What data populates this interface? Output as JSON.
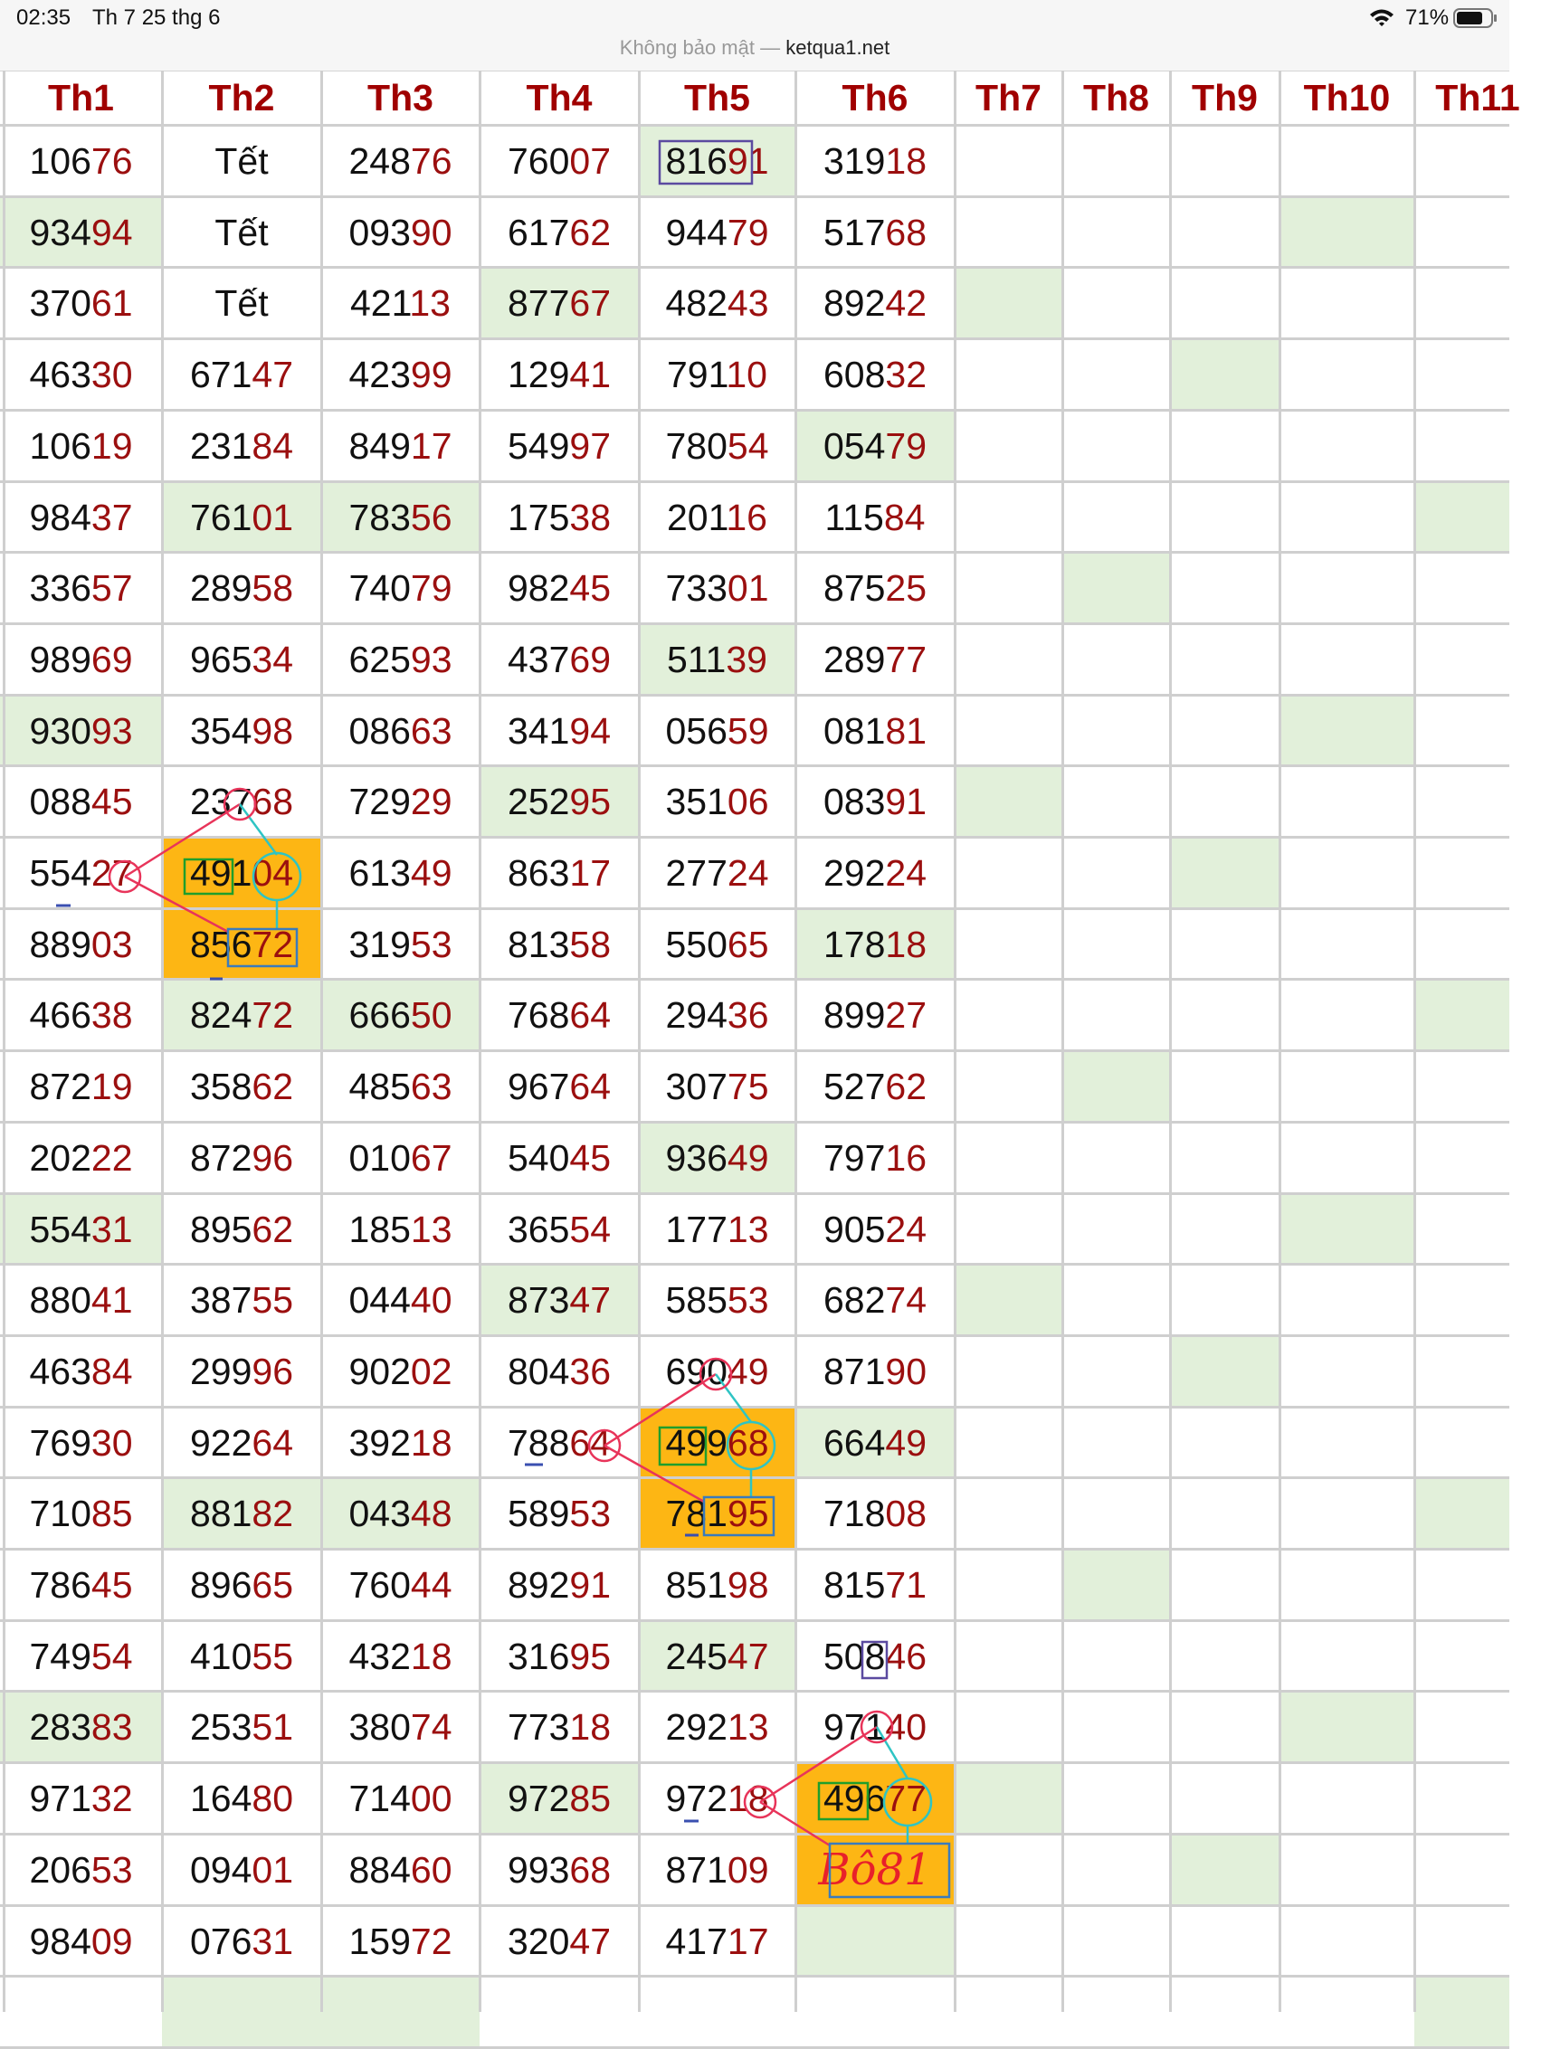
{
  "status_bar": {
    "time": "02:35",
    "date": "Th 7 25 thg 6",
    "battery": "71%"
  },
  "url_bar": {
    "security": "Không bảo mật —",
    "domain": "ketqua1.net"
  },
  "table": {
    "headers": [
      "Th1",
      "Th2",
      "Th3",
      "Th4",
      "Th5",
      "Th6",
      "Th7",
      "Th8",
      "Th9",
      "Th10",
      "Th11"
    ],
    "rows": [
      [
        "10676",
        "Tết",
        "24876",
        "76007",
        "81691",
        "31918"
      ],
      [
        "93494",
        "Tết",
        "09390",
        "61762",
        "94479",
        "51768"
      ],
      [
        "37061",
        "Tết",
        "42113",
        "87767",
        "48243",
        "89242"
      ],
      [
        "46330",
        "67147",
        "42399",
        "12941",
        "79110",
        "60832"
      ],
      [
        "10619",
        "23184",
        "84917",
        "54997",
        "78054",
        "05479"
      ],
      [
        "98437",
        "76101",
        "78356",
        "17538",
        "20116",
        "11584"
      ],
      [
        "33657",
        "28958",
        "74079",
        "98245",
        "73301",
        "87525"
      ],
      [
        "98969",
        "96534",
        "62593",
        "43769",
        "51139",
        "28977"
      ],
      [
        "93093",
        "35498",
        "08663",
        "34194",
        "05659",
        "08181"
      ],
      [
        "08845",
        "23768",
        "72929",
        "25295",
        "35106",
        "08391"
      ],
      [
        "55427",
        "49104",
        "61349",
        "86317",
        "27724",
        "29224"
      ],
      [
        "88903",
        "85672",
        "31953",
        "81358",
        "55065",
        "17818"
      ],
      [
        "46638",
        "82472",
        "66650",
        "76864",
        "29436",
        "89927"
      ],
      [
        "87219",
        "35862",
        "48563",
        "96764",
        "30775",
        "52762"
      ],
      [
        "20222",
        "87296",
        "01067",
        "54045",
        "93649",
        "79716"
      ],
      [
        "55431",
        "89562",
        "18513",
        "36554",
        "17713",
        "90524"
      ],
      [
        "88041",
        "38755",
        "04440",
        "87347",
        "58553",
        "68274"
      ],
      [
        "46384",
        "29996",
        "90202",
        "80436",
        "69049",
        "87190"
      ],
      [
        "76930",
        "92264",
        "39218",
        "78864",
        "49968",
        "66449"
      ],
      [
        "71085",
        "88182",
        "04348",
        "58953",
        "78195",
        "71808"
      ],
      [
        "78645",
        "89665",
        "76044",
        "89291",
        "85198",
        "81571"
      ],
      [
        "74954",
        "41055",
        "43218",
        "31695",
        "24547",
        "50846"
      ],
      [
        "28383",
        "25351",
        "38074",
        "77318",
        "29213",
        "97140"
      ],
      [
        "97132",
        "16480",
        "71400",
        "97285",
        "97218",
        "49677"
      ],
      [
        "20653",
        "09401",
        "88460",
        "99368",
        "87109",
        "Bô81"
      ],
      [
        "98409",
        "07631",
        "15972",
        "32047",
        "41717",
        null
      ]
    ]
  }
}
